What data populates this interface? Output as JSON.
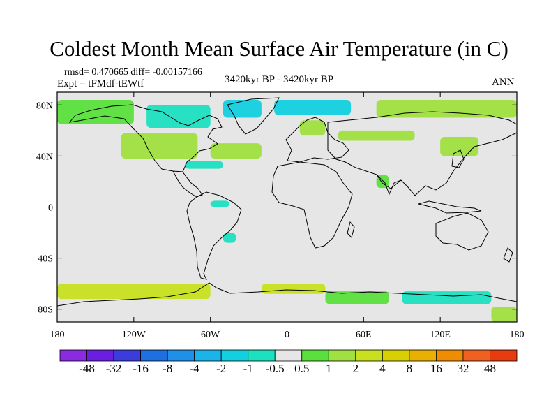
{
  "chart_data": {
    "type": "heatmap",
    "title": "Coldest Month Mean Surface Air Temperature (in C)",
    "stats_text": "rmsd= 0.470665 diff= -0.00157166",
    "expt_text": "Expt = tFMdf-tEWtf",
    "period_text": "3420kyr BP - 3420kyr BP",
    "season_text": "ANN",
    "x_ticks": [
      "180",
      "120W",
      "60W",
      "0",
      "60E",
      "120E",
      "180"
    ],
    "y_ticks": [
      "80N",
      "40N",
      "0",
      "40S",
      "80S"
    ],
    "xlim": [
      -180,
      180
    ],
    "ylim": [
      -90,
      90
    ],
    "colorbar": {
      "colors": [
        "#8a2be2",
        "#6a1fe0",
        "#3c3cdc",
        "#1e6fe0",
        "#1e90e8",
        "#1ab4ea",
        "#12d0e0",
        "#1ce0c0",
        "#e6e6e6",
        "#5ae03c",
        "#a0e040",
        "#c8e020",
        "#d8d000",
        "#e8b000",
        "#f08c00",
        "#f06020",
        "#e83c10"
      ],
      "labels": [
        "-48",
        "-32",
        "-16",
        "-8",
        "-4",
        "-2",
        "-1",
        "-0.5",
        "0.5",
        "1",
        "2",
        "4",
        "8",
        "16",
        "32",
        "48"
      ]
    },
    "anomaly_regions": [
      {
        "lon_min": -180,
        "lon_max": -120,
        "lat_min": 65,
        "lat_max": 84,
        "bin": 9
      },
      {
        "lon_min": -110,
        "lon_max": -60,
        "lat_min": 62,
        "lat_max": 80,
        "bin": 7
      },
      {
        "lon_min": -50,
        "lon_max": -20,
        "lat_min": 70,
        "lat_max": 84,
        "bin": 6
      },
      {
        "lon_min": -10,
        "lon_max": 50,
        "lat_min": 72,
        "lat_max": 84,
        "bin": 6
      },
      {
        "lon_min": 70,
        "lon_max": 180,
        "lat_min": 70,
        "lat_max": 84,
        "bin": 10
      },
      {
        "lon_min": -130,
        "lon_max": -70,
        "lat_min": 38,
        "lat_max": 58,
        "bin": 10
      },
      {
        "lon_min": -60,
        "lon_max": -20,
        "lat_min": 38,
        "lat_max": 50,
        "bin": 10
      },
      {
        "lon_min": 10,
        "lon_max": 30,
        "lat_min": 56,
        "lat_max": 68,
        "bin": 10
      },
      {
        "lon_min": 40,
        "lon_max": 100,
        "lat_min": 52,
        "lat_max": 60,
        "bin": 10
      },
      {
        "lon_min": 120,
        "lon_max": 150,
        "lat_min": 40,
        "lat_max": 55,
        "bin": 10
      },
      {
        "lon_min": -80,
        "lon_max": -50,
        "lat_min": 30,
        "lat_max": 36,
        "bin": 7
      },
      {
        "lon_min": -60,
        "lon_max": -45,
        "lat_min": 0,
        "lat_max": 5,
        "bin": 7
      },
      {
        "lon_min": -50,
        "lon_max": -40,
        "lat_min": -28,
        "lat_max": -20,
        "bin": 7
      },
      {
        "lon_min": 70,
        "lon_max": 80,
        "lat_min": 15,
        "lat_max": 25,
        "bin": 9
      },
      {
        "lon_min": -180,
        "lon_max": -60,
        "lat_min": -72,
        "lat_max": -60,
        "bin": 11
      },
      {
        "lon_min": -20,
        "lon_max": 30,
        "lat_min": -68,
        "lat_max": -60,
        "bin": 11
      },
      {
        "lon_min": 30,
        "lon_max": 80,
        "lat_min": -76,
        "lat_max": -66,
        "bin": 9
      },
      {
        "lon_min": 90,
        "lon_max": 160,
        "lat_min": -76,
        "lat_max": -66,
        "bin": 7
      },
      {
        "lon_min": 160,
        "lon_max": 180,
        "lat_min": -90,
        "lat_max": -78,
        "bin": 10
      }
    ]
  }
}
